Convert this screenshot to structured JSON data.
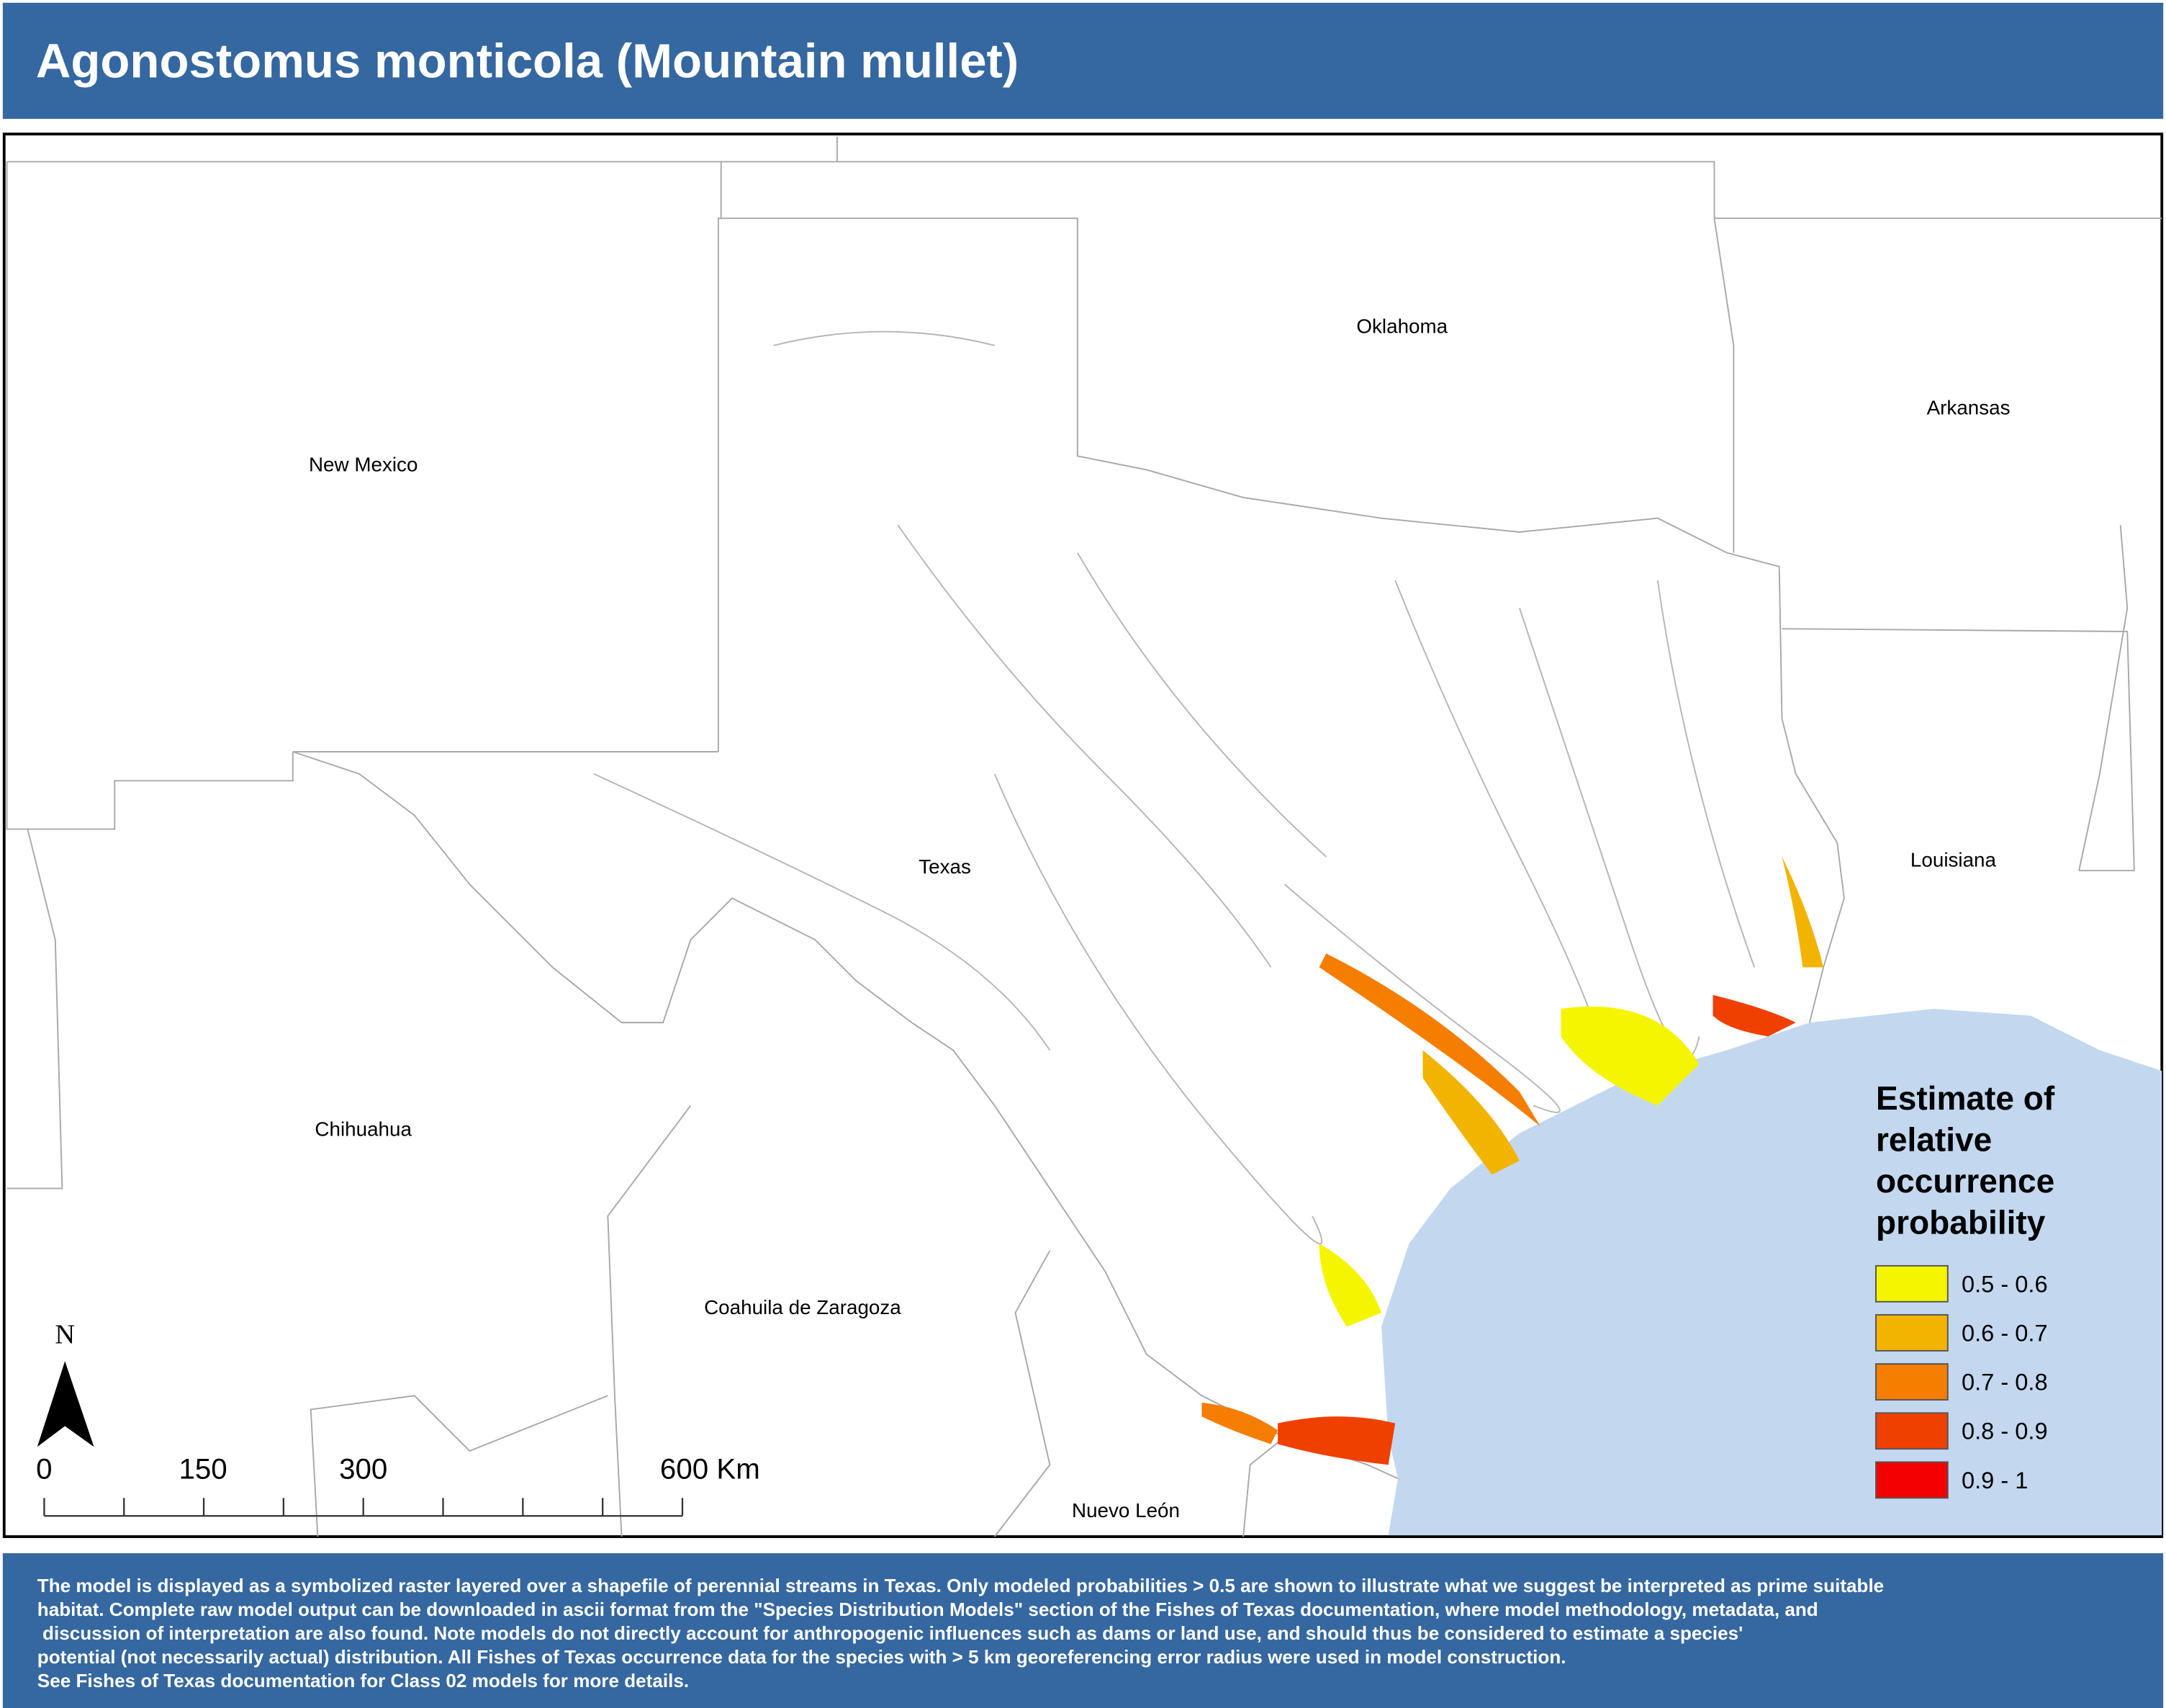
{
  "header": {
    "title": "Agonostomus monticola (Mountain mullet)"
  },
  "map": {
    "labels": [
      {
        "text": "Oklahoma"
      },
      {
        "text": "Arkansas"
      },
      {
        "text": "New Mexico"
      },
      {
        "text": "Louisiana"
      },
      {
        "text": "Texas"
      },
      {
        "text": "Chihuahua"
      },
      {
        "text": "Coahuila de Zaragoza"
      },
      {
        "text": "Nuevo León"
      }
    ],
    "north": "N",
    "scale_bar": [
      "0",
      "150",
      "300",
      "600 Km"
    ]
  },
  "legend": {
    "title": [
      "Estimate of",
      "relative",
      "occurrence",
      "probability"
    ],
    "items": [
      {
        "label": "0.5 - 0.6",
        "color": "#f5f500"
      },
      {
        "label": "0.6 - 0.7",
        "color": "#f2b400"
      },
      {
        "label": "0.7 - 0.8",
        "color": "#f57d00"
      },
      {
        "label": "0.8 - 0.9",
        "color": "#f04000"
      },
      {
        "label": "0.9 - 1",
        "color": "#f50000"
      }
    ]
  },
  "footer": {
    "lines": [
      "The model is displayed as a symbolized raster layered over a shapefile of perennial streams in Texas. Only modeled probabilities > 0.5 are shown to illustrate what we suggest be interpreted as prime suitable",
      "habitat. Complete raw model output can be downloaded in ascii format from the \"Species Distribution Models\" section of the Fishes of Texas documentation, where model methodology, metadata, and",
      " discussion of interpretation are also found. Note models do not directly account for anthropogenic influences such as dams or land use, and should thus be considered to estimate a species'",
      "potential (not necessarily actual) distribution. All Fishes of Texas occurrence data for the species with > 5 km georeferencing error radius were used in model construction.",
      "See Fishes of Texas documentation for Class 02 models for more details."
    ]
  }
}
